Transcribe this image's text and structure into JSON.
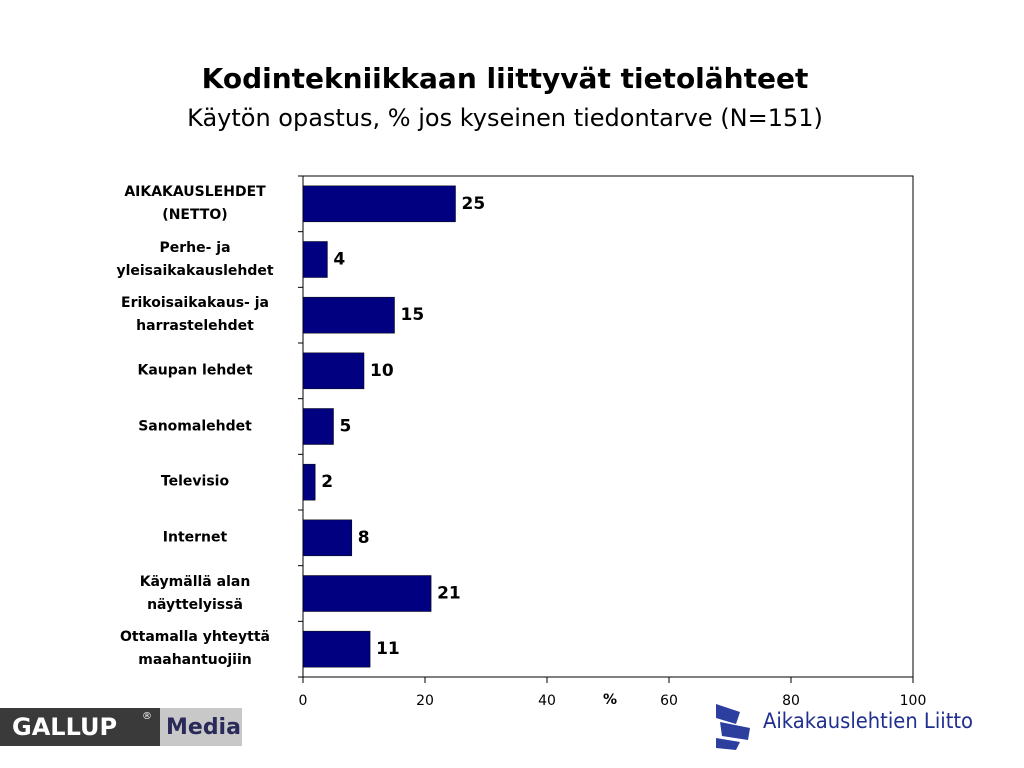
{
  "chart_data": {
    "type": "bar",
    "orientation": "horizontal",
    "title": "Kodintekniikkaan liittyvät tietolähteet",
    "subtitle": "Käytön opastus, % jos kyseinen tiedontarve (N=151)",
    "x_label": "%",
    "categories": [
      "AIKAKAUSLEHDET (NETTO)",
      "Perhe- ja yleisaikakauslehdet",
      "Erikoisaikakaus- ja harrastelehdet",
      "Kaupan lehdet",
      "Sanomalehdet",
      "Televisio",
      "Internet",
      "Käymällä alan näyttelyissä",
      "Ottamalla yhteyttä maahantuojiin"
    ],
    "values": [
      25,
      4,
      15,
      10,
      5,
      2,
      8,
      21,
      11
    ],
    "color": "#000080",
    "xlim": [
      0,
      100
    ],
    "xticks": [
      0,
      20,
      40,
      60,
      80,
      100
    ],
    "grid": false
  },
  "logos": {
    "left": [
      "GALLUP",
      "®",
      "Media"
    ],
    "right": "Aikakauslehtien Liitto"
  }
}
